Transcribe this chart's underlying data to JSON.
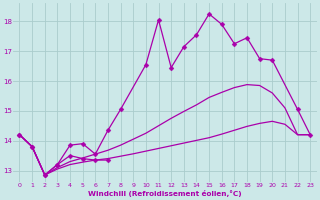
{
  "bg_color": "#cce8e8",
  "grid_color": "#aacccc",
  "line_color": "#aa00aa",
  "xlabel": "Windchill (Refroidissement éolien,°C)",
  "x_ticks": [
    0,
    1,
    2,
    3,
    4,
    5,
    6,
    7,
    8,
    9,
    10,
    11,
    12,
    13,
    14,
    15,
    16,
    17,
    18,
    19,
    20,
    21,
    22,
    23
  ],
  "y_ticks": [
    13,
    14,
    15,
    16,
    17,
    18
  ],
  "xlim": [
    -0.5,
    23.5
  ],
  "ylim": [
    12.6,
    18.6
  ],
  "tick_fontsize": 4.5,
  "xlabel_fontsize": 5.2,
  "series": [
    {
      "x": [
        0,
        1,
        2,
        3,
        4,
        5,
        6,
        7,
        8,
        10,
        11,
        12,
        13,
        14,
        15,
        16,
        17,
        18,
        19,
        20,
        22,
        23
      ],
      "y": [
        14.2,
        13.8,
        12.85,
        13.2,
        13.85,
        13.9,
        13.55,
        14.35,
        15.05,
        16.55,
        18.05,
        16.45,
        17.15,
        17.55,
        18.25,
        17.9,
        17.25,
        17.45,
        16.75,
        16.7,
        15.05,
        14.2
      ],
      "marker": "D",
      "ms": 2.5,
      "lw": 0.9
    },
    {
      "x": [
        0,
        1,
        2,
        3,
        4,
        5,
        6,
        7
      ],
      "y": [
        14.2,
        13.8,
        12.85,
        13.2,
        13.5,
        13.4,
        13.35,
        13.35
      ],
      "marker": "D",
      "ms": 2.5,
      "lw": 0.9
    },
    {
      "x": [
        0,
        1,
        2,
        3,
        4,
        5,
        6,
        7,
        8,
        9,
        10,
        11,
        12,
        13,
        14,
        15,
        16,
        17,
        18,
        19,
        20,
        21,
        22,
        23
      ],
      "y": [
        14.2,
        13.8,
        12.85,
        13.05,
        13.2,
        13.28,
        13.35,
        13.4,
        13.48,
        13.56,
        13.65,
        13.74,
        13.83,
        13.92,
        14.01,
        14.1,
        14.22,
        14.35,
        14.48,
        14.58,
        14.65,
        14.55,
        14.2,
        14.2
      ],
      "marker": null,
      "ms": 0,
      "lw": 0.9
    },
    {
      "x": [
        0,
        1,
        2,
        3,
        4,
        5,
        6,
        7,
        8,
        9,
        10,
        11,
        12,
        13,
        14,
        15,
        16,
        17,
        18,
        19,
        20,
        21,
        22,
        23
      ],
      "y": [
        14.2,
        13.8,
        12.85,
        13.1,
        13.3,
        13.42,
        13.55,
        13.68,
        13.85,
        14.05,
        14.25,
        14.5,
        14.75,
        14.98,
        15.2,
        15.45,
        15.62,
        15.78,
        15.88,
        15.85,
        15.6,
        15.1,
        14.2,
        14.2
      ],
      "marker": null,
      "ms": 0,
      "lw": 0.9
    }
  ]
}
